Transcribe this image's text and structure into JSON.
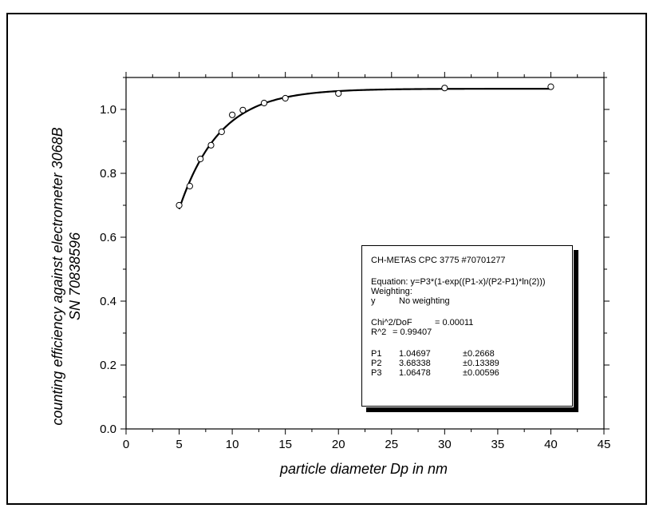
{
  "chart_data": {
    "type": "scatter",
    "xlabel": "particle diameter Dp in nm",
    "ylabel_lines": [
      "counting efficiency against electrometer 3068B",
      "SN 70838596"
    ],
    "xlim": [
      0,
      45
    ],
    "ylim": [
      0.0,
      1.1
    ],
    "x_ticks": [
      0,
      5,
      10,
      15,
      20,
      25,
      30,
      35,
      40,
      45
    ],
    "x_tick_labels": [
      "0",
      "5",
      "10",
      "15",
      "20",
      "25",
      "30",
      "35",
      "40",
      "45"
    ],
    "y_ticks": [
      0.0,
      0.2,
      0.4,
      0.6,
      0.8,
      1.0
    ],
    "y_tick_labels": [
      "0.0",
      "0.2",
      "0.4",
      "0.6",
      "0.8",
      "1.0"
    ],
    "grid": false,
    "series": [
      {
        "kind": "points",
        "marker": "open-circle",
        "x": [
          5,
          6,
          7,
          8,
          9,
          10,
          11,
          13,
          15,
          20,
          30,
          40
        ],
        "y": [
          0.7,
          0.76,
          0.845,
          0.888,
          0.93,
          0.983,
          0.998,
          1.02,
          1.035,
          1.05,
          1.067,
          1.071
        ]
      },
      {
        "kind": "fit-curve",
        "equation_params": {
          "P1": 1.04697,
          "P2": 3.68338,
          "P3": 1.06478
        },
        "x_range": [
          5,
          40
        ]
      }
    ],
    "legend": {
      "placement": "bottom-right",
      "title": "CH-METAS CPC 3775 #70701277",
      "equation": "Equation: y=P3*(1-exp((P1-x)/(P2-P1)*ln(2)))",
      "weighting_label": "Weighting:",
      "weighting_key": "y",
      "weighting_value": "No weighting",
      "chi_label": "Chi^2/DoF",
      "chi_value": "= 0.00011",
      "r2_label": "R^2",
      "r2_value": "=  0.99407",
      "params": [
        {
          "name": "P1",
          "value": "1.04697",
          "error": "±0.2668"
        },
        {
          "name": "P2",
          "value": "3.68338",
          "error": "±0.13389"
        },
        {
          "name": "P3",
          "value": "1.06478",
          "error": "±0.00596"
        }
      ]
    }
  }
}
